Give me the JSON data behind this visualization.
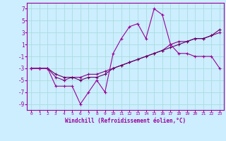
{
  "x": [
    0,
    1,
    2,
    3,
    4,
    5,
    6,
    7,
    8,
    9,
    10,
    11,
    12,
    13,
    14,
    15,
    16,
    17,
    18,
    19,
    20,
    21,
    22,
    23
  ],
  "series1": [
    -3,
    -3,
    -3,
    -6,
    -6,
    -6,
    -9,
    -7,
    -5,
    -7,
    -0.5,
    2,
    4,
    4.5,
    2,
    7,
    6,
    1,
    -0.5,
    -0.5,
    -1,
    -1,
    -1,
    -3
  ],
  "series2": [
    -3,
    -3,
    -3,
    -4.5,
    -5,
    -4.5,
    -4.5,
    -4,
    -4,
    -3.5,
    -3,
    -2.5,
    -2,
    -1.5,
    -1,
    -0.5,
    0,
    1,
    1.5,
    1.5,
    2,
    2,
    2.5,
    3
  ],
  "series3": [
    -3,
    -3,
    -3,
    -4,
    -4.5,
    -4.5,
    -5,
    -4.5,
    -4.5,
    -4,
    -3,
    -2.5,
    -2,
    -1.5,
    -1,
    -0.5,
    0,
    0.5,
    1,
    1.5,
    2,
    2,
    2.5,
    3.5
  ],
  "line_color1": "#990099",
  "line_color2": "#880088",
  "line_color3": "#660066",
  "background_color": "#cceeff",
  "grid_color": "#aadddd",
  "xlabel": "Windchill (Refroidissement éolien,°C)",
  "ylim": [
    -10,
    8
  ],
  "xlim": [
    -0.5,
    23.5
  ],
  "yticks": [
    7,
    5,
    3,
    1,
    -1,
    -3,
    -5,
    -7,
    -9
  ],
  "xticks": [
    0,
    1,
    2,
    3,
    4,
    5,
    6,
    7,
    8,
    9,
    10,
    11,
    12,
    13,
    14,
    15,
    16,
    17,
    18,
    19,
    20,
    21,
    22,
    23
  ]
}
